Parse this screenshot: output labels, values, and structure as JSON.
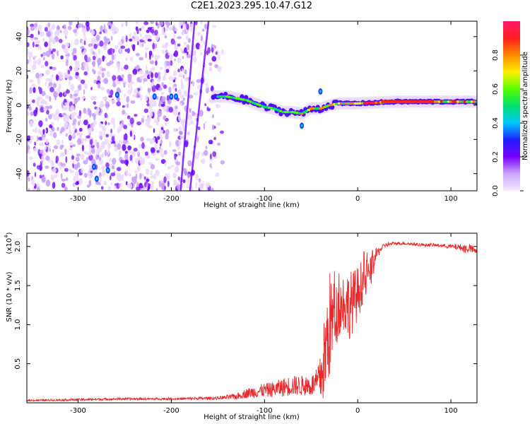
{
  "title": "C2E1.2023.295.10.47.G12",
  "chart_data": [
    {
      "type": "heatmap",
      "xlabel": "Height of straight line (km)",
      "ylabel": "Frequency (Hz)",
      "xlim": [
        -355,
        128
      ],
      "ylim": [
        -50,
        49
      ],
      "xticks": [
        -300,
        -200,
        -100,
        0,
        100
      ],
      "yticks": [
        -40,
        -20,
        0,
        20,
        40
      ],
      "colorbar": {
        "label": "Normalized spectral amplitude",
        "range": [
          0,
          1
        ],
        "ticks": [
          0.0,
          0.2,
          0.4,
          0.6,
          0.8
        ],
        "colors": [
          "#f3e8ff",
          "#cda6ff",
          "#7a00ff",
          "#1f1fff",
          "#00c8ff",
          "#00e070",
          "#55ff00",
          "#ffee00",
          "#ff8800",
          "#ff1e1e",
          "#ff1a6a"
        ]
      },
      "ridge": {
        "x": [
          -150,
          -140,
          -130,
          -120,
          -110,
          -100,
          -90,
          -80,
          -70,
          -60,
          -50,
          -40,
          -30,
          -20,
          -10,
          0,
          20,
          40,
          60,
          80,
          100,
          120
        ],
        "frequency": [
          5,
          5,
          4,
          3,
          1,
          -1,
          -2,
          -4,
          -4,
          -5,
          -2,
          -2,
          0,
          1,
          1,
          1,
          1.5,
          2,
          2,
          2,
          2,
          2
        ]
      }
    },
    {
      "type": "line",
      "xlabel": "Height of straight line (km)",
      "ylabel": "SNR (10 * v/v)",
      "y_multiplier": "(x10",
      "y_multiplier_exp": "4",
      "y_multiplier_close": ")",
      "xlim": [
        -355,
        128
      ],
      "ylim": [
        0,
        2.17
      ],
      "xticks": [
        -300,
        -200,
        -100,
        0,
        100
      ],
      "yticks": [
        0.5,
        1.0,
        1.5,
        2.0
      ],
      "color": "#e8282a",
      "series": [
        {
          "x": [
            -355,
            -300,
            -250,
            -200,
            -150,
            -130,
            -120,
            -110,
            -100,
            -90,
            -80,
            -70,
            -60,
            -50,
            -45,
            -40,
            -35,
            -30,
            -25,
            -20,
            -15,
            -10,
            -5,
            0,
            5,
            10,
            15,
            20,
            25,
            30,
            40,
            50,
            60,
            70,
            80,
            90,
            100,
            110,
            115,
            120,
            128
          ],
          "y": [
            0.03,
            0.04,
            0.05,
            0.05,
            0.06,
            0.08,
            0.12,
            0.14,
            0.16,
            0.17,
            0.2,
            0.22,
            0.22,
            0.22,
            0.25,
            0.3,
            0.6,
            1.0,
            1.1,
            1.2,
            1.3,
            1.25,
            1.3,
            1.4,
            1.55,
            1.6,
            1.7,
            1.9,
            1.97,
            2.02,
            2.04,
            2.04,
            2.03,
            2.02,
            2.02,
            2.01,
            2.0,
            1.99,
            1.97,
            1.98,
            1.93
          ],
          "noise": [
            0.01,
            0.015,
            0.015,
            0.015,
            0.02,
            0.04,
            0.06,
            0.08,
            0.09,
            0.1,
            0.12,
            0.13,
            0.13,
            0.14,
            0.16,
            0.3,
            0.6,
            0.7,
            0.45,
            0.35,
            0.4,
            0.45,
            0.4,
            0.35,
            0.3,
            0.25,
            0.18,
            0.08,
            0.04,
            0.03,
            0.02,
            0.02,
            0.02,
            0.02,
            0.02,
            0.02,
            0.03,
            0.04,
            0.06,
            0.06,
            0.03
          ]
        }
      ]
    }
  ]
}
